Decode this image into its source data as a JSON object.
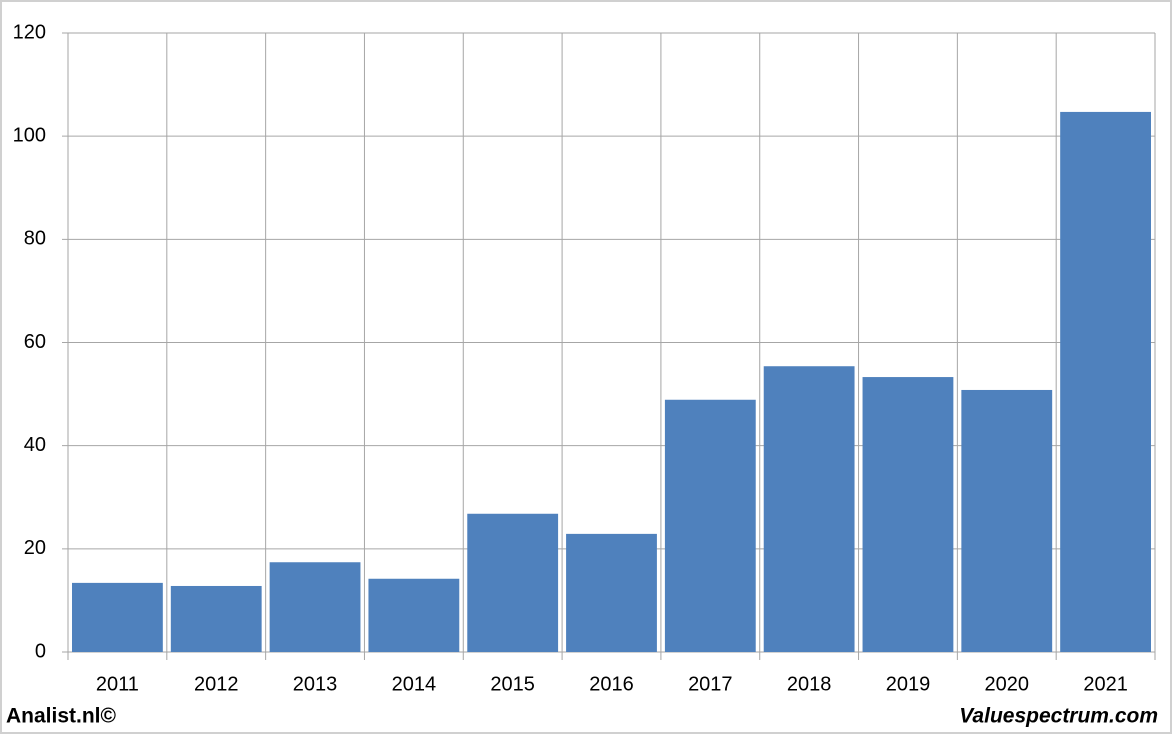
{
  "chart_data": {
    "type": "bar",
    "categories": [
      "2011",
      "2012",
      "2013",
      "2014",
      "2015",
      "2016",
      "2017",
      "2018",
      "2019",
      "2020",
      "2021"
    ],
    "values": [
      13.4,
      12.8,
      17.4,
      14.2,
      26.8,
      22.9,
      48.9,
      55.4,
      53.3,
      50.8,
      104.7
    ],
    "color": "#4f81bd",
    "ylim": [
      0,
      120
    ],
    "yticks": [
      0,
      20,
      40,
      60,
      80,
      100,
      120
    ],
    "grid": true
  },
  "footer": {
    "left": "Analist.nl©",
    "right": "Valuespectrum.com"
  }
}
